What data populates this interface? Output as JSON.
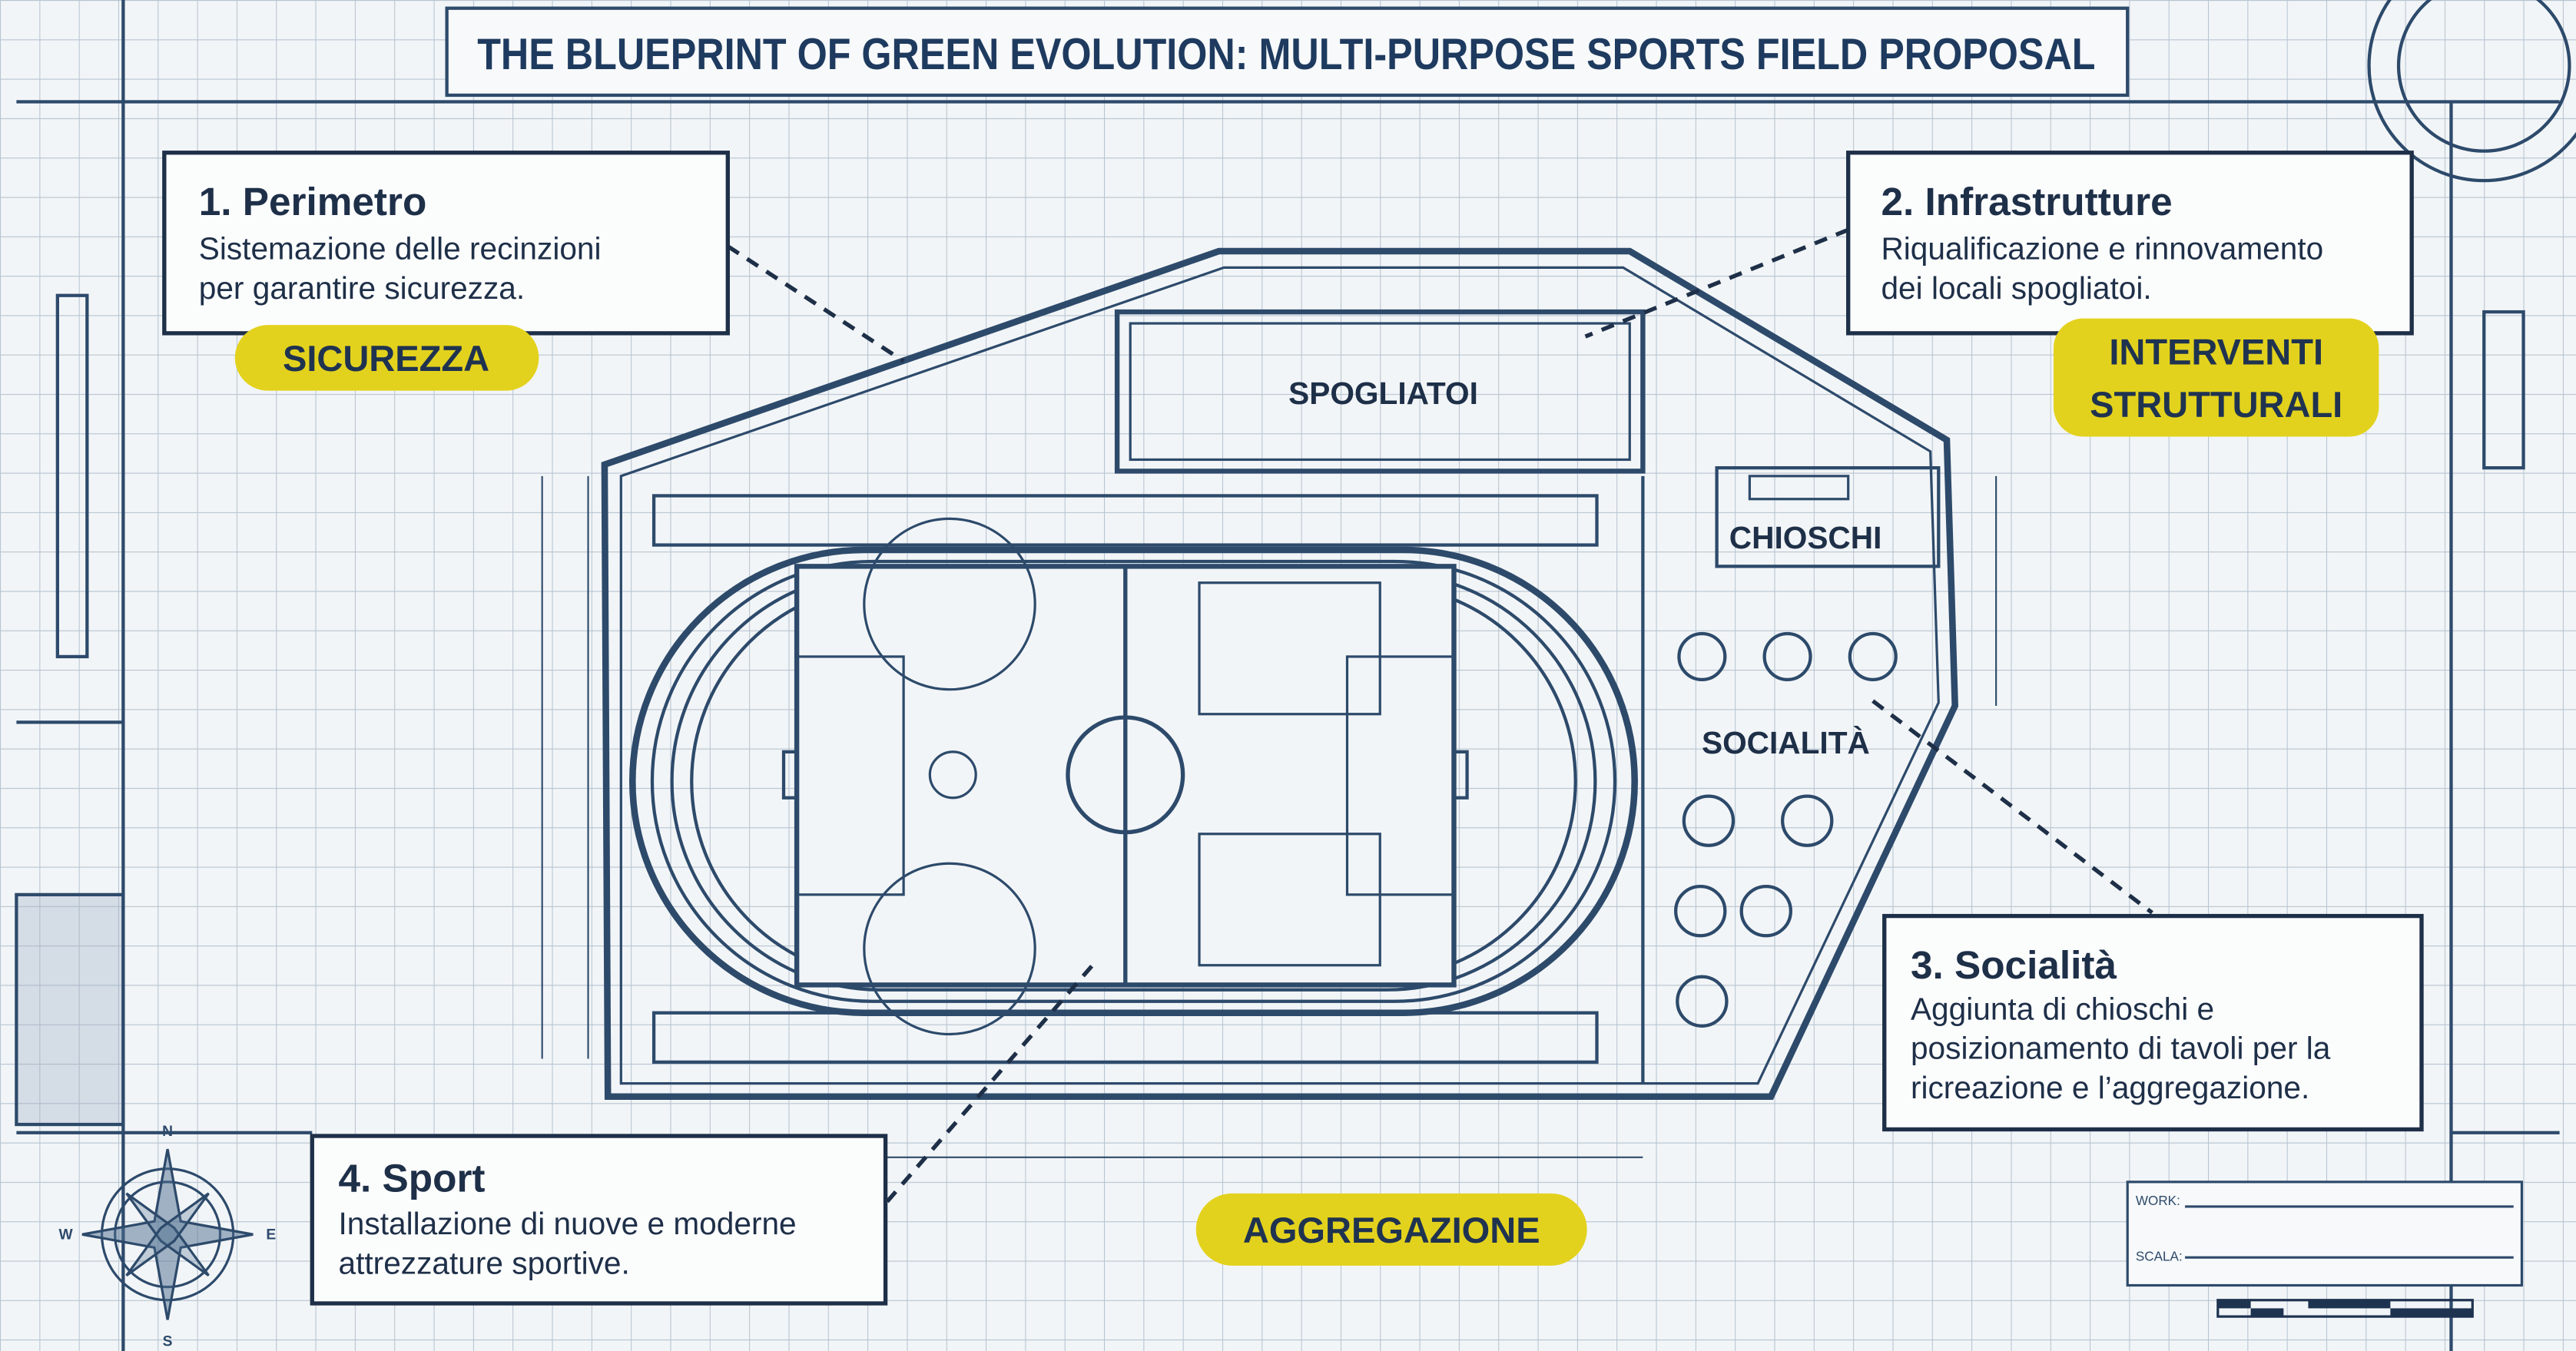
{
  "title": "THE BLUEPRINT OF GREEN EVOLUTION: MULTI-PURPOSE SPORTS FIELD PROPOSAL",
  "callouts": [
    {
      "title": "1. Perimetro",
      "lines": [
        "Sistemazione delle recinzioni",
        "per garantire sicurezza."
      ]
    },
    {
      "title": "2. Infrastrutture",
      "lines": [
        "Riqualificazione e rinnovamento",
        "dei locali spogliatoi."
      ]
    },
    {
      "title": "3. Socialità",
      "lines": [
        "Aggiunta di chioschi e",
        "posizionamento di tavoli per la",
        "ricreazione e l’aggregazione."
      ]
    },
    {
      "title": "4. Sport",
      "lines": [
        "Installazione di nuove e moderne",
        "attrezzature sportive."
      ]
    }
  ],
  "badges": [
    {
      "lines": [
        "SICUREZZA"
      ]
    },
    {
      "lines": [
        "INTERVENTI",
        "STRUTTURALI"
      ]
    },
    {
      "lines": [
        "AGGREGAZIONE"
      ]
    }
  ],
  "areas": [
    "SPOGLIATOI",
    "CHIOSCHI",
    "SOCIALITÀ"
  ],
  "compass": {
    "north": "N",
    "south": "S",
    "west": "W",
    "east": "E"
  },
  "title_block": {
    "work": "WORK:",
    "scale": "SCALA:"
  }
}
